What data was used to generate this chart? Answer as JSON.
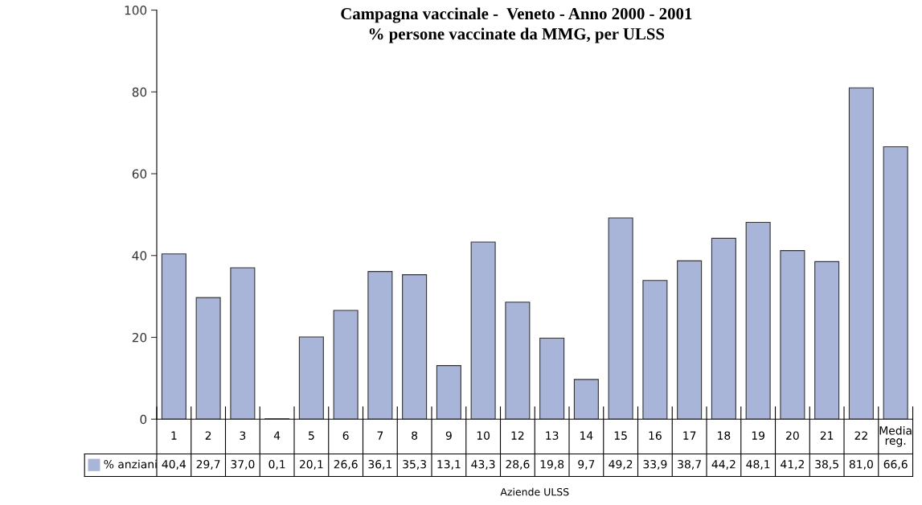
{
  "chart_data": {
    "type": "bar",
    "title": "Campagna vaccinale -  Veneto - Anno 2000 - 2001",
    "subtitle": "% persone vaccinate da MMG, per ULSS",
    "xlabel": "Aziende ULSS",
    "categories": [
      "1",
      "2",
      "3",
      "4",
      "5",
      "6",
      "7",
      "8",
      "9",
      "10",
      "12",
      "13",
      "14",
      "15",
      "16",
      "17",
      "18",
      "19",
      "20",
      "21",
      "22",
      "Media\nreg."
    ],
    "series": [
      {
        "name": "% anziani",
        "color": "#a9b4d9",
        "values": [
          40.4,
          29.7,
          37.0,
          0.1,
          20.1,
          26.6,
          36.1,
          35.3,
          13.1,
          43.3,
          28.6,
          19.8,
          9.7,
          49.2,
          33.9,
          38.7,
          44.2,
          48.1,
          41.2,
          38.5,
          81.0,
          66.6
        ],
        "value_labels": [
          "40,4",
          "29,7",
          "37,0",
          "0,1",
          "20,1",
          "26,6",
          "36,1",
          "35,3",
          "13,1",
          "43,3",
          "28,6",
          "19,8",
          "9,7",
          "49,2",
          "33,9",
          "38,7",
          "44,2",
          "48,1",
          "41,2",
          "38,5",
          "81,0",
          "66,6"
        ]
      }
    ],
    "ylim": [
      0,
      100
    ],
    "yticks": [
      0,
      20,
      40,
      60,
      80,
      100
    ],
    "grid": false,
    "legend": "bottom left"
  }
}
